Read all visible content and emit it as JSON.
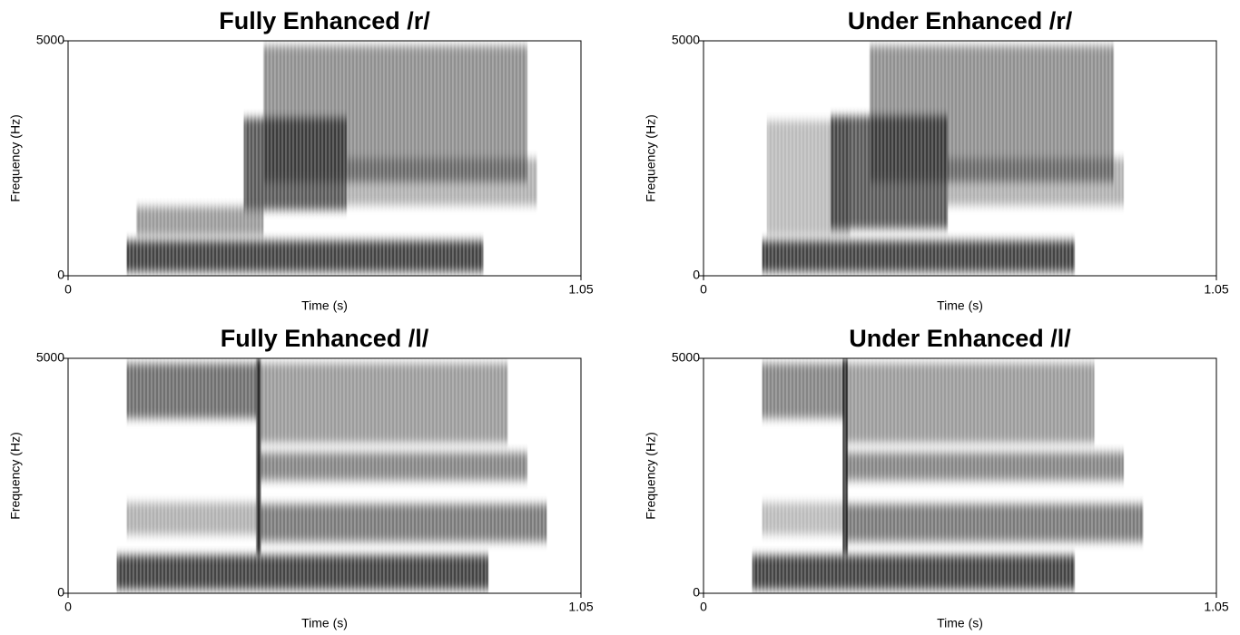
{
  "chart_data": [
    {
      "type": "spectrogram",
      "title": "Fully Enhanced /r/",
      "xlabel": "Time (s)",
      "ylabel": "Frequency (Hz)",
      "xlim": [
        0,
        1.05
      ],
      "ylim": [
        0,
        5000
      ],
      "xticks": [
        0,
        1.05
      ],
      "yticks": [
        0,
        5000
      ],
      "regions": [
        {
          "x": [
            0.12,
            0.85
          ],
          "y": [
            80,
            750
          ],
          "intensity": 0.85
        },
        {
          "x": [
            0.14,
            0.4
          ],
          "y": [
            850,
            1470
          ],
          "intensity": 0.45
        },
        {
          "x": [
            0.36,
            0.57
          ],
          "y": [
            1400,
            3360
          ],
          "intensity": 0.75
        },
        {
          "x": [
            0.4,
            0.94
          ],
          "y": [
            2000,
            4900
          ],
          "intensity": 0.5
        },
        {
          "x": [
            0.57,
            0.96
          ],
          "y": [
            1500,
            2500
          ],
          "intensity": 0.35
        }
      ]
    },
    {
      "type": "spectrogram",
      "title": "Under Enhanced /r/",
      "xlabel": "Time (s)",
      "ylabel": "Frequency (Hz)",
      "xlim": [
        0,
        1.05
      ],
      "ylim": [
        0,
        5000
      ],
      "xticks": [
        0,
        1.05
      ],
      "yticks": [
        0,
        5000
      ],
      "regions": [
        {
          "x": [
            0.12,
            0.76
          ],
          "y": [
            80,
            750
          ],
          "intensity": 0.85
        },
        {
          "x": [
            0.13,
            0.3
          ],
          "y": [
            850,
            3300
          ],
          "intensity": 0.3
        },
        {
          "x": [
            0.26,
            0.5
          ],
          "y": [
            1000,
            3400
          ],
          "intensity": 0.75
        },
        {
          "x": [
            0.34,
            0.84
          ],
          "y": [
            2000,
            4900
          ],
          "intensity": 0.5
        },
        {
          "x": [
            0.5,
            0.86
          ],
          "y": [
            1500,
            2500
          ],
          "intensity": 0.35
        }
      ]
    },
    {
      "type": "spectrogram",
      "title": "Fully Enhanced /l/",
      "xlabel": "Time (s)",
      "ylabel": "Frequency (Hz)",
      "xlim": [
        0,
        1.05
      ],
      "ylim": [
        0,
        5000
      ],
      "xticks": [
        0,
        1.05
      ],
      "yticks": [
        0,
        5000
      ],
      "regions": [
        {
          "x": [
            0.1,
            0.86
          ],
          "y": [
            80,
            810
          ],
          "intensity": 0.85
        },
        {
          "x": [
            0.12,
            0.39
          ],
          "y": [
            3720,
            4900
          ],
          "intensity": 0.65
        },
        {
          "x": [
            0.12,
            0.39
          ],
          "y": [
            1250,
            1930
          ],
          "intensity": 0.35
        },
        {
          "x": [
            0.385,
            0.395
          ],
          "y": [
            800,
            5000
          ],
          "intensity": 0.9
        },
        {
          "x": [
            0.39,
            0.98
          ],
          "y": [
            1100,
            1900
          ],
          "intensity": 0.6
        },
        {
          "x": [
            0.39,
            0.94
          ],
          "y": [
            2400,
            3000
          ],
          "intensity": 0.55
        },
        {
          "x": [
            0.39,
            0.9
          ],
          "y": [
            3200,
            4900
          ],
          "intensity": 0.45
        }
      ]
    },
    {
      "type": "spectrogram",
      "title": "Under Enhanced /l/",
      "xlabel": "Time (s)",
      "ylabel": "Frequency (Hz)",
      "xlim": [
        0,
        1.05
      ],
      "ylim": [
        0,
        5000
      ],
      "xticks": [
        0,
        1.05
      ],
      "yticks": [
        0,
        5000
      ],
      "regions": [
        {
          "x": [
            0.1,
            0.76
          ],
          "y": [
            80,
            810
          ],
          "intensity": 0.85
        },
        {
          "x": [
            0.12,
            0.29
          ],
          "y": [
            3720,
            4900
          ],
          "intensity": 0.55
        },
        {
          "x": [
            0.12,
            0.29
          ],
          "y": [
            1250,
            1930
          ],
          "intensity": 0.3
        },
        {
          "x": [
            0.285,
            0.295
          ],
          "y": [
            800,
            5000
          ],
          "intensity": 0.9
        },
        {
          "x": [
            0.29,
            0.9
          ],
          "y": [
            1100,
            1900
          ],
          "intensity": 0.6
        },
        {
          "x": [
            0.29,
            0.86
          ],
          "y": [
            2400,
            3000
          ],
          "intensity": 0.55
        },
        {
          "x": [
            0.29,
            0.8
          ],
          "y": [
            3200,
            4900
          ],
          "intensity": 0.45
        }
      ]
    }
  ]
}
